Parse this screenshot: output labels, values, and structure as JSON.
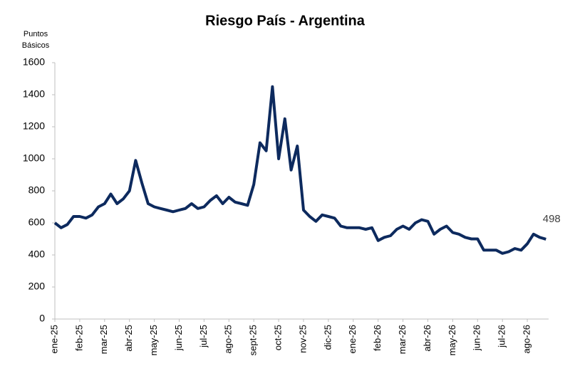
{
  "chart_data": {
    "type": "line",
    "title": "Riesgo País - Argentina",
    "ylabel": [
      "Puntos",
      "Básicos"
    ],
    "categories": [
      "ene-25",
      null,
      null,
      null,
      "feb-25",
      null,
      null,
      null,
      "mar-25",
      null,
      null,
      null,
      "abr-25",
      null,
      null,
      null,
      "may-25",
      null,
      null,
      null,
      "jun-25",
      null,
      null,
      null,
      "jul-25",
      null,
      null,
      null,
      "ago-25",
      null,
      null,
      null,
      "sept-25",
      null,
      null,
      null,
      "oct-25",
      null,
      null,
      null,
      "nov-25",
      null,
      null,
      null,
      "dic-25",
      null,
      null,
      null,
      "ene-26",
      null,
      null,
      null,
      "feb-26",
      null,
      null,
      null,
      "mar-26",
      null,
      null,
      null,
      "abr-26",
      null,
      null,
      null,
      "may-26",
      null,
      null,
      null,
      "jun-26",
      null,
      null,
      null,
      "jul-26",
      null,
      null,
      null,
      "ago-26",
      null,
      null,
      null
    ],
    "series": [
      {
        "name": "Riesgo País",
        "color": "#0d2a5e",
        "values": [
          600,
          570,
          590,
          640,
          640,
          630,
          650,
          700,
          720,
          780,
          720,
          750,
          800,
          990,
          850,
          720,
          700,
          690,
          680,
          670,
          680,
          690,
          720,
          690,
          700,
          740,
          770,
          720,
          760,
          730,
          720,
          710,
          840,
          1100,
          1050,
          1450,
          1000,
          1250,
          930,
          1080,
          680,
          640,
          610,
          650,
          640,
          630,
          580,
          570,
          570,
          570,
          560,
          570,
          490,
          510,
          520,
          560,
          580,
          560,
          600,
          620,
          610,
          530,
          560,
          580,
          540,
          530,
          510,
          500,
          500,
          430,
          430,
          430,
          410,
          420,
          440,
          430,
          470,
          530,
          510,
          498
        ],
        "value_labels": {
          "79": "498"
        }
      }
    ],
    "ylim": [
      0,
      1600
    ],
    "yticks": [
      0,
      200,
      400,
      600,
      800,
      1000,
      1200,
      1400,
      1600
    ],
    "grid": false
  }
}
